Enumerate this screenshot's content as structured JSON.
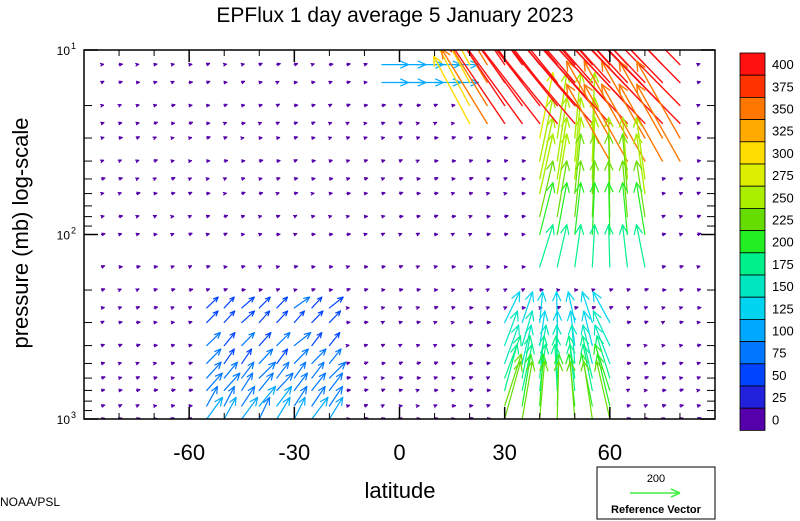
{
  "chart_data": {
    "type": "quiver",
    "title": "EPFlux  1 day average  5 January   2023",
    "xlabel": "latitude",
    "ylabel": "pressure (mb)  log-scale",
    "x_ticks": [
      -60,
      -30,
      0,
      30,
      60
    ],
    "x_tick_labels": [
      "-60",
      "-30",
      "0",
      "30",
      "60"
    ],
    "xlim": [
      -90,
      90
    ],
    "y_scale": "log",
    "y_reversed": true,
    "ylim": [
      10,
      1000
    ],
    "y_major_ticks": [
      10,
      100,
      1000
    ],
    "y_tick_labels": [
      {
        "base": "10",
        "exp": "1"
      },
      {
        "base": "10",
        "exp": "2"
      },
      {
        "base": "10",
        "exp": "3"
      }
    ],
    "colorbar": {
      "levels": [
        0,
        25,
        50,
        75,
        100,
        125,
        150,
        175,
        200,
        225,
        250,
        275,
        300,
        325,
        350,
        375,
        400
      ],
      "labels": [
        "0",
        "25",
        "50",
        "75",
        "100",
        "125",
        "150",
        "175",
        "200",
        "225",
        "250",
        "275",
        "300",
        "325",
        "350",
        "375",
        "400"
      ],
      "colors": [
        "#5500aa",
        "#2222dd",
        "#0044ff",
        "#0077ff",
        "#00a8ff",
        "#00d4f0",
        "#00e6c0",
        "#00f08a",
        "#22ee22",
        "#66dd00",
        "#aaee00",
        "#ddee00",
        "#ffdd00",
        "#ffaa00",
        "#ff7700",
        "#ff3300",
        "#ff1111"
      ]
    },
    "reference_vector": {
      "value": "200",
      "label": "Reference Vector",
      "color": "#44ee44"
    },
    "credit": "NOAA/PSL",
    "grid": false
  }
}
